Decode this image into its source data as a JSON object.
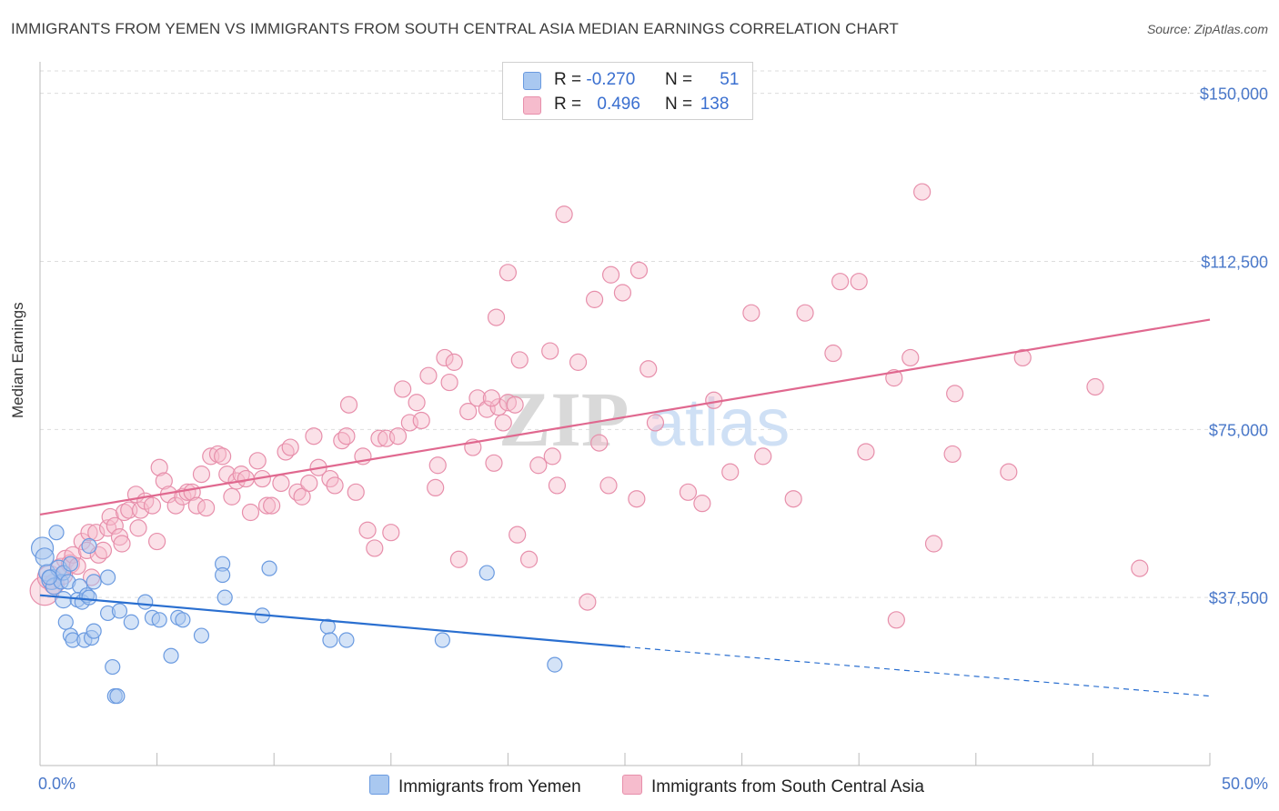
{
  "title": "IMMIGRANTS FROM YEMEN VS IMMIGRANTS FROM SOUTH CENTRAL ASIA MEDIAN EARNINGS CORRELATION CHART",
  "source": "Source: ZipAtlas.com",
  "watermark": {
    "zip": "ZIP",
    "atlas": "atlas"
  },
  "colors": {
    "yemen_fill": "#a9c8f0",
    "yemen_stroke": "#6a9ae0",
    "yemen_line": "#2a6fd0",
    "sca_fill": "#f6bccd",
    "sca_stroke": "#e78fab",
    "sca_line": "#e0688f",
    "axis_text": "#4a78c9",
    "grid": "#dddddd"
  },
  "legend": {
    "rows": [
      {
        "r_label": "R =",
        "r_value": "-0.270",
        "n_label": "N =",
        "n_value": "51"
      },
      {
        "r_label": "R =",
        "r_value": "0.496",
        "n_label": "N =",
        "n_value": "138"
      }
    ]
  },
  "bottom_legend": [
    "Immigrants from Yemen",
    "Immigrants from South Central Asia"
  ],
  "chart_data": {
    "type": "scatter",
    "title": "IMMIGRANTS FROM YEMEN VS IMMIGRANTS FROM SOUTH CENTRAL ASIA MEDIAN EARNINGS CORRELATION CHART",
    "xlabel": "",
    "ylabel": "Median Earnings",
    "xlim": [
      0,
      50
    ],
    "ylim": [
      0,
      155000
    ],
    "x_tick_labels": [
      "0.0%",
      "50.0%"
    ],
    "y_ticks": [
      37500,
      75000,
      112500,
      150000
    ],
    "y_tick_labels": [
      "$37,500",
      "$75,000",
      "$112,500",
      "$150,000"
    ],
    "grid": true,
    "series": [
      {
        "name": "Immigrants from Yemen",
        "r": -0.27,
        "n": 51,
        "trend": {
          "x0": 0,
          "y0": 38000,
          "x1": 25,
          "y1": 26500,
          "dash_to_x": 50,
          "dash_to_y": 15500
        },
        "points": [
          {
            "x": 0.1,
            "y": 48500,
            "s": 12
          },
          {
            "x": 0.2,
            "y": 46500,
            "s": 10
          },
          {
            "x": 0.3,
            "y": 43000,
            "s": 9
          },
          {
            "x": 0.5,
            "y": 41500,
            "s": 11
          },
          {
            "x": 0.6,
            "y": 40000,
            "s": 9
          },
          {
            "x": 0.8,
            "y": 44000,
            "s": 9
          },
          {
            "x": 0.9,
            "y": 41000,
            "s": 8
          },
          {
            "x": 1.0,
            "y": 43000,
            "s": 8
          },
          {
            "x": 0.7,
            "y": 52000,
            "s": 8
          },
          {
            "x": 1.0,
            "y": 37000,
            "s": 9
          },
          {
            "x": 1.2,
            "y": 41000,
            "s": 8
          },
          {
            "x": 1.3,
            "y": 45000,
            "s": 8
          },
          {
            "x": 1.1,
            "y": 32000,
            "s": 8
          },
          {
            "x": 1.3,
            "y": 29000,
            "s": 8
          },
          {
            "x": 1.4,
            "y": 28000,
            "s": 8
          },
          {
            "x": 1.7,
            "y": 40000,
            "s": 8
          },
          {
            "x": 1.6,
            "y": 37000,
            "s": 8
          },
          {
            "x": 1.8,
            "y": 36500,
            "s": 8
          },
          {
            "x": 1.9,
            "y": 28000,
            "s": 8
          },
          {
            "x": 2.0,
            "y": 38000,
            "s": 8
          },
          {
            "x": 2.1,
            "y": 37500,
            "s": 8
          },
          {
            "x": 2.1,
            "y": 49000,
            "s": 8
          },
          {
            "x": 2.3,
            "y": 41000,
            "s": 8
          },
          {
            "x": 2.2,
            "y": 28500,
            "s": 8
          },
          {
            "x": 2.3,
            "y": 30000,
            "s": 8
          },
          {
            "x": 2.9,
            "y": 42000,
            "s": 8
          },
          {
            "x": 2.9,
            "y": 34000,
            "s": 8
          },
          {
            "x": 3.1,
            "y": 22000,
            "s": 8
          },
          {
            "x": 3.2,
            "y": 15500,
            "s": 8
          },
          {
            "x": 3.3,
            "y": 15500,
            "s": 8
          },
          {
            "x": 3.4,
            "y": 34500,
            "s": 8
          },
          {
            "x": 3.9,
            "y": 32000,
            "s": 8
          },
          {
            "x": 4.5,
            "y": 36500,
            "s": 8
          },
          {
            "x": 4.8,
            "y": 33000,
            "s": 8
          },
          {
            "x": 5.1,
            "y": 32500,
            "s": 8
          },
          {
            "x": 5.6,
            "y": 24500,
            "s": 8
          },
          {
            "x": 5.9,
            "y": 33000,
            "s": 8
          },
          {
            "x": 6.1,
            "y": 32500,
            "s": 8
          },
          {
            "x": 6.9,
            "y": 29000,
            "s": 8
          },
          {
            "x": 7.8,
            "y": 45000,
            "s": 8
          },
          {
            "x": 7.8,
            "y": 42500,
            "s": 8
          },
          {
            "x": 7.9,
            "y": 37500,
            "s": 8
          },
          {
            "x": 9.5,
            "y": 33500,
            "s": 8
          },
          {
            "x": 9.8,
            "y": 44000,
            "s": 8
          },
          {
            "x": 12.3,
            "y": 31000,
            "s": 8
          },
          {
            "x": 12.4,
            "y": 28000,
            "s": 8
          },
          {
            "x": 13.1,
            "y": 28000,
            "s": 8
          },
          {
            "x": 17.2,
            "y": 28000,
            "s": 8
          },
          {
            "x": 19.1,
            "y": 43000,
            "s": 8
          },
          {
            "x": 22.0,
            "y": 22500,
            "s": 8
          },
          {
            "x": 0.4,
            "y": 42000,
            "s": 8
          }
        ]
      },
      {
        "name": "Immigrants from South Central Asia",
        "r": 0.496,
        "n": 138,
        "trend": {
          "x0": 0,
          "y0": 56000,
          "x1": 50,
          "y1": 99500
        },
        "points": [
          {
            "x": 0.2,
            "y": 39000,
            "s": 16
          },
          {
            "x": 0.4,
            "y": 42000,
            "s": 13
          },
          {
            "x": 0.6,
            "y": 40500,
            "s": 11
          },
          {
            "x": 0.9,
            "y": 44000,
            "s": 11
          },
          {
            "x": 1.0,
            "y": 42500,
            "s": 10
          },
          {
            "x": 1.1,
            "y": 46000,
            "s": 10
          },
          {
            "x": 1.3,
            "y": 45000,
            "s": 10
          },
          {
            "x": 1.4,
            "y": 47000,
            "s": 9
          },
          {
            "x": 1.6,
            "y": 44500,
            "s": 9
          },
          {
            "x": 1.8,
            "y": 50000,
            "s": 9
          },
          {
            "x": 2.0,
            "y": 48000,
            "s": 9
          },
          {
            "x": 2.1,
            "y": 52000,
            "s": 9
          },
          {
            "x": 2.2,
            "y": 42000,
            "s": 9
          },
          {
            "x": 2.4,
            "y": 52000,
            "s": 9
          },
          {
            "x": 2.5,
            "y": 47000,
            "s": 9
          },
          {
            "x": 2.7,
            "y": 48000,
            "s": 9
          },
          {
            "x": 2.9,
            "y": 53000,
            "s": 9
          },
          {
            "x": 3.0,
            "y": 55500,
            "s": 9
          },
          {
            "x": 3.2,
            "y": 53500,
            "s": 9
          },
          {
            "x": 3.4,
            "y": 51000,
            "s": 9
          },
          {
            "x": 3.5,
            "y": 49500,
            "s": 9
          },
          {
            "x": 3.6,
            "y": 56500,
            "s": 9
          },
          {
            "x": 3.8,
            "y": 57000,
            "s": 9
          },
          {
            "x": 4.1,
            "y": 60500,
            "s": 9
          },
          {
            "x": 4.2,
            "y": 53000,
            "s": 9
          },
          {
            "x": 4.3,
            "y": 57000,
            "s": 9
          },
          {
            "x": 4.5,
            "y": 59000,
            "s": 9
          },
          {
            "x": 4.8,
            "y": 58000,
            "s": 9
          },
          {
            "x": 5.0,
            "y": 50000,
            "s": 9
          },
          {
            "x": 5.1,
            "y": 66500,
            "s": 9
          },
          {
            "x": 5.3,
            "y": 63500,
            "s": 9
          },
          {
            "x": 5.5,
            "y": 60500,
            "s": 9
          },
          {
            "x": 5.8,
            "y": 58000,
            "s": 9
          },
          {
            "x": 6.1,
            "y": 60000,
            "s": 9
          },
          {
            "x": 6.3,
            "y": 61000,
            "s": 9
          },
          {
            "x": 6.5,
            "y": 61000,
            "s": 9
          },
          {
            "x": 6.7,
            "y": 58000,
            "s": 9
          },
          {
            "x": 6.9,
            "y": 65000,
            "s": 9
          },
          {
            "x": 7.1,
            "y": 57500,
            "s": 9
          },
          {
            "x": 7.3,
            "y": 69000,
            "s": 9
          },
          {
            "x": 7.6,
            "y": 69500,
            "s": 9
          },
          {
            "x": 7.8,
            "y": 69000,
            "s": 9
          },
          {
            "x": 8.0,
            "y": 65000,
            "s": 9
          },
          {
            "x": 8.2,
            "y": 60000,
            "s": 9
          },
          {
            "x": 8.4,
            "y": 63500,
            "s": 9
          },
          {
            "x": 8.6,
            "y": 65000,
            "s": 9
          },
          {
            "x": 8.8,
            "y": 64000,
            "s": 9
          },
          {
            "x": 9.0,
            "y": 56500,
            "s": 9
          },
          {
            "x": 9.3,
            "y": 68000,
            "s": 9
          },
          {
            "x": 9.5,
            "y": 64000,
            "s": 9
          },
          {
            "x": 9.7,
            "y": 58000,
            "s": 9
          },
          {
            "x": 9.9,
            "y": 58000,
            "s": 9
          },
          {
            "x": 10.3,
            "y": 63000,
            "s": 9
          },
          {
            "x": 10.5,
            "y": 70000,
            "s": 9
          },
          {
            "x": 10.7,
            "y": 71000,
            "s": 9
          },
          {
            "x": 11.0,
            "y": 61000,
            "s": 9
          },
          {
            "x": 11.2,
            "y": 60000,
            "s": 9
          },
          {
            "x": 11.5,
            "y": 63000,
            "s": 9
          },
          {
            "x": 11.7,
            "y": 73500,
            "s": 9
          },
          {
            "x": 11.9,
            "y": 66500,
            "s": 9
          },
          {
            "x": 12.4,
            "y": 64000,
            "s": 9
          },
          {
            "x": 12.6,
            "y": 62500,
            "s": 9
          },
          {
            "x": 12.9,
            "y": 72500,
            "s": 9
          },
          {
            "x": 13.1,
            "y": 73500,
            "s": 9
          },
          {
            "x": 13.2,
            "y": 80500,
            "s": 9
          },
          {
            "x": 13.5,
            "y": 61000,
            "s": 9
          },
          {
            "x": 13.8,
            "y": 69000,
            "s": 9
          },
          {
            "x": 14.0,
            "y": 52500,
            "s": 9
          },
          {
            "x": 14.3,
            "y": 48500,
            "s": 9
          },
          {
            "x": 14.5,
            "y": 73000,
            "s": 9
          },
          {
            "x": 14.8,
            "y": 73000,
            "s": 9
          },
          {
            "x": 15.0,
            "y": 52000,
            "s": 9
          },
          {
            "x": 15.3,
            "y": 73500,
            "s": 9
          },
          {
            "x": 15.5,
            "y": 84000,
            "s": 9
          },
          {
            "x": 15.8,
            "y": 76500,
            "s": 9
          },
          {
            "x": 16.1,
            "y": 81000,
            "s": 9
          },
          {
            "x": 16.3,
            "y": 77000,
            "s": 9
          },
          {
            "x": 16.6,
            "y": 87000,
            "s": 9
          },
          {
            "x": 16.9,
            "y": 62000,
            "s": 9
          },
          {
            "x": 17.0,
            "y": 67000,
            "s": 9
          },
          {
            "x": 17.3,
            "y": 91000,
            "s": 9
          },
          {
            "x": 17.5,
            "y": 85500,
            "s": 9
          },
          {
            "x": 17.7,
            "y": 90000,
            "s": 9
          },
          {
            "x": 17.9,
            "y": 46000,
            "s": 9
          },
          {
            "x": 18.3,
            "y": 79000,
            "s": 9
          },
          {
            "x": 18.5,
            "y": 71000,
            "s": 9
          },
          {
            "x": 18.7,
            "y": 82000,
            "s": 9
          },
          {
            "x": 19.1,
            "y": 79500,
            "s": 9
          },
          {
            "x": 19.4,
            "y": 67500,
            "s": 9
          },
          {
            "x": 19.6,
            "y": 80000,
            "s": 9
          },
          {
            "x": 19.8,
            "y": 76500,
            "s": 9
          },
          {
            "x": 20.0,
            "y": 81000,
            "s": 9
          },
          {
            "x": 19.5,
            "y": 100000,
            "s": 9
          },
          {
            "x": 19.3,
            "y": 82000,
            "s": 9
          },
          {
            "x": 20.4,
            "y": 51500,
            "s": 9
          },
          {
            "x": 20.5,
            "y": 90500,
            "s": 9
          },
          {
            "x": 20.0,
            "y": 110000,
            "s": 9
          },
          {
            "x": 20.9,
            "y": 46000,
            "s": 9
          },
          {
            "x": 20.3,
            "y": 80500,
            "s": 9
          },
          {
            "x": 21.3,
            "y": 67000,
            "s": 9
          },
          {
            "x": 21.8,
            "y": 92500,
            "s": 9
          },
          {
            "x": 21.9,
            "y": 69000,
            "s": 9
          },
          {
            "x": 22.1,
            "y": 62500,
            "s": 9
          },
          {
            "x": 22.4,
            "y": 123000,
            "s": 9
          },
          {
            "x": 23.0,
            "y": 90000,
            "s": 9
          },
          {
            "x": 23.4,
            "y": 36500,
            "s": 9
          },
          {
            "x": 23.7,
            "y": 104000,
            "s": 9
          },
          {
            "x": 23.9,
            "y": 72000,
            "s": 9
          },
          {
            "x": 24.3,
            "y": 62500,
            "s": 9
          },
          {
            "x": 24.4,
            "y": 109500,
            "s": 9
          },
          {
            "x": 24.9,
            "y": 105500,
            "s": 9
          },
          {
            "x": 25.5,
            "y": 59500,
            "s": 9
          },
          {
            "x": 25.6,
            "y": 110500,
            "s": 9
          },
          {
            "x": 26.0,
            "y": 88500,
            "s": 9
          },
          {
            "x": 26.3,
            "y": 76500,
            "s": 9
          },
          {
            "x": 27.7,
            "y": 61000,
            "s": 9
          },
          {
            "x": 28.3,
            "y": 58500,
            "s": 9
          },
          {
            "x": 28.8,
            "y": 81500,
            "s": 9
          },
          {
            "x": 29.5,
            "y": 65500,
            "s": 9
          },
          {
            "x": 30.4,
            "y": 101000,
            "s": 9
          },
          {
            "x": 30.9,
            "y": 69000,
            "s": 9
          },
          {
            "x": 32.2,
            "y": 59500,
            "s": 9
          },
          {
            "x": 32.7,
            "y": 101000,
            "s": 9
          },
          {
            "x": 33.9,
            "y": 92000,
            "s": 9
          },
          {
            "x": 34.2,
            "y": 108000,
            "s": 9
          },
          {
            "x": 35.0,
            "y": 108000,
            "s": 9
          },
          {
            "x": 35.3,
            "y": 70000,
            "s": 9
          },
          {
            "x": 36.6,
            "y": 32500,
            "s": 9
          },
          {
            "x": 36.5,
            "y": 86500,
            "s": 9
          },
          {
            "x": 37.7,
            "y": 128000,
            "s": 9
          },
          {
            "x": 38.2,
            "y": 49500,
            "s": 9
          },
          {
            "x": 39.0,
            "y": 69500,
            "s": 9
          },
          {
            "x": 39.1,
            "y": 83000,
            "s": 9
          },
          {
            "x": 37.2,
            "y": 91000,
            "s": 9
          },
          {
            "x": 41.4,
            "y": 65500,
            "s": 9
          },
          {
            "x": 42.0,
            "y": 91000,
            "s": 9
          },
          {
            "x": 45.1,
            "y": 84500,
            "s": 9
          },
          {
            "x": 47.0,
            "y": 44000,
            "s": 9
          }
        ]
      }
    ]
  }
}
